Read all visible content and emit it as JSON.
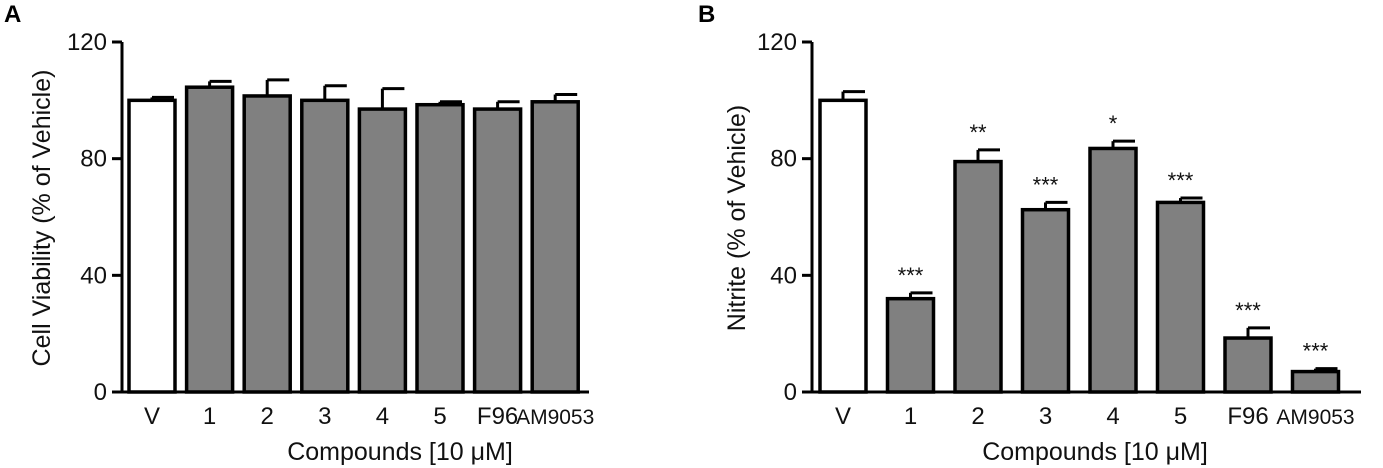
{
  "chart_data": [
    {
      "type": "bar",
      "panel_label": "A",
      "categories": [
        "V",
        "1",
        "2",
        "3",
        "4",
        "5",
        "F96",
        "AM9053"
      ],
      "values": [
        100,
        104.5,
        101.5,
        100,
        97,
        98.5,
        97,
        99.5
      ],
      "errors": [
        1,
        2,
        5.5,
        5,
        7,
        1,
        2.5,
        2.5
      ],
      "significance": [
        "",
        "",
        "",
        "",
        "",
        "",
        "",
        ""
      ],
      "bar_fills": [
        "#ffffff",
        "#808080",
        "#808080",
        "#808080",
        "#808080",
        "#808080",
        "#808080",
        "#808080"
      ],
      "ylabel": "Cell Viability (% of Vehicle)",
      "xlabel": "Compounds [10 μM]",
      "ylim": [
        0,
        120
      ],
      "yticks": [
        "0",
        "40",
        "80",
        "120"
      ],
      "grid": false
    },
    {
      "type": "bar",
      "panel_label": "B",
      "categories": [
        "V",
        "1",
        "2",
        "3",
        "4",
        "5",
        "F96",
        "AM9053"
      ],
      "values": [
        100,
        32,
        79,
        62.5,
        83.5,
        65,
        18.5,
        7
      ],
      "errors": [
        3,
        2,
        4,
        2.5,
        2.5,
        1.5,
        3.5,
        1
      ],
      "significance": [
        "",
        "***",
        "**",
        "***",
        "*",
        "***",
        "***",
        "***"
      ],
      "bar_fills": [
        "#ffffff",
        "#808080",
        "#808080",
        "#808080",
        "#808080",
        "#808080",
        "#808080",
        "#808080"
      ],
      "ylabel": "Nitrite (% of Vehicle)",
      "xlabel": "Compounds [10 μM]",
      "ylim": [
        0,
        120
      ],
      "yticks": [
        "0",
        "40",
        "80",
        "120"
      ],
      "grid": false
    }
  ]
}
